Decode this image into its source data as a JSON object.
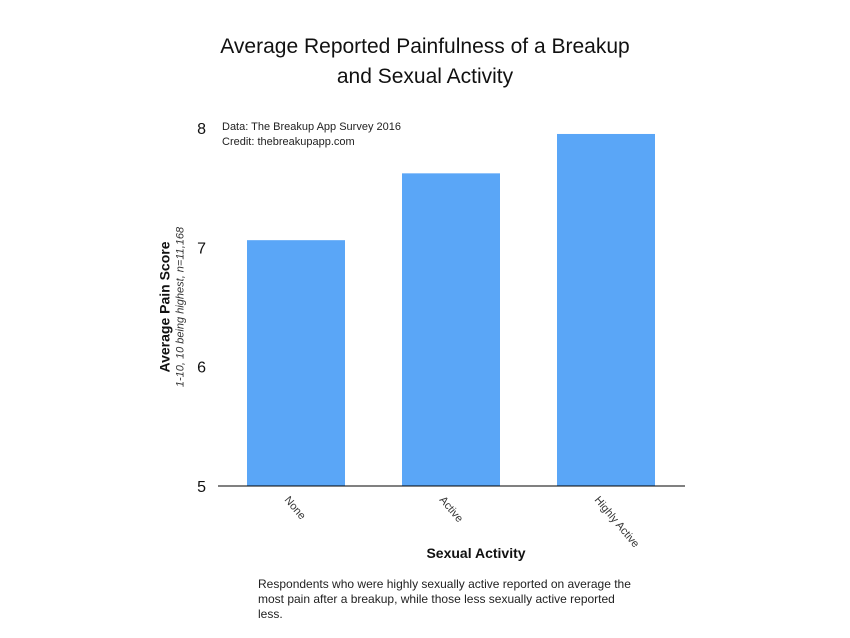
{
  "chart_data": {
    "type": "bar",
    "title": [
      "Average Reported Painfulness of a Breakup",
      "and Sexual Activity"
    ],
    "annotation": [
      "Data: The Breakup App Survey 2016",
      "Credit: thebreakupapp.com"
    ],
    "ylabel": "Average Pain Score",
    "ylabel_sub": "1-10, 10 being highest, n=11,168",
    "xlabel": "Sexual Activity",
    "categories": [
      "None",
      "Active",
      "Highly Active"
    ],
    "values": [
      7.06,
      7.62,
      7.95
    ],
    "ylim": [
      5,
      8
    ],
    "yticks": [
      "5",
      "6",
      "7",
      "8"
    ],
    "bar_color": "#5aa6f7",
    "grid": false,
    "legend": "none"
  },
  "caption": "Respondents who were highly sexually active reported on average the most pain after a breakup, while those less sexually active reported less."
}
